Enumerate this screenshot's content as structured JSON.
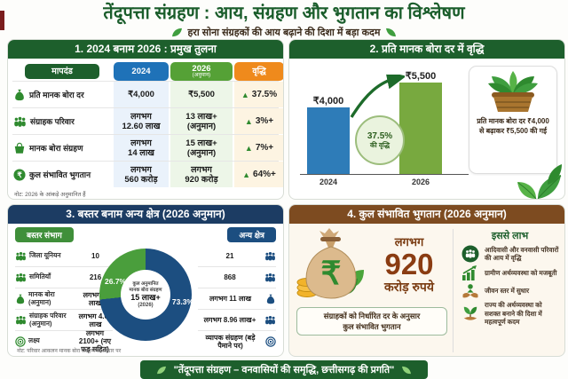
{
  "header": {
    "title": "तेंदूपत्ता संग्रहण : आय, संग्रहण और भुगतान का विश्लेषण",
    "subtitle": "हरा सोना संग्रहकों की आय बढ़ाने की दिशा में बड़ा कदम"
  },
  "panel1": {
    "title": "1. 2024 बनाम 2026 : प्रमुख तुलना",
    "col_param": "मापदंड",
    "col_2024": "2024",
    "col_2026": "2026",
    "col_2026_sub": "(अनुमान)",
    "col_growth": "वृद्धि",
    "rows": [
      {
        "icon": "money-bag",
        "label": "प्रति मानक बोरा दर",
        "y24a": "₹4,000",
        "y24b": "",
        "y26a": "₹5,500",
        "y26b": "",
        "growth": "37.5%"
      },
      {
        "icon": "families",
        "label": "संग्राहक परिवार",
        "y24a": "लगभग",
        "y24b": "12.60 लाख",
        "y26a": "13 लाख+",
        "y26b": "(अनुमान)",
        "growth": "3%+"
      },
      {
        "icon": "basket",
        "label": "मानक बोरा संग्रहण",
        "y24a": "लगभग",
        "y24b": "14 लाख",
        "y26a": "15 लाख+",
        "y26b": "(अनुमान)",
        "growth": "7%+"
      },
      {
        "icon": "rupee-circle",
        "label": "कुल संभावित भुगतान",
        "y24a": "लगभग",
        "y24b": "560 करोड़",
        "y26a": "लगभग",
        "y26b": "920 करोड़",
        "growth": "64%+"
      }
    ],
    "note": "नोट: 2026 के आंकड़े अनुमानित हैं"
  },
  "panel2": {
    "title": "2. प्रति मानक बोरा दर में वृद्धि",
    "bar1_value": "₹4,000",
    "bar1_year": "2024",
    "bar2_value": "₹5,500",
    "bar2_year": "2026",
    "badge_line1": "37.5%",
    "badge_line2": "की वृद्धि",
    "side_note": "प्रति मानक बोरा दर ₹4,000 से बढ़ाकर ₹5,500 की गई"
  },
  "panel3": {
    "title": "3. बस्तर बनाम अन्य क्षेत्र (2026 अनुमान)",
    "left_header": "बस्तर संभाग",
    "right_header": "अन्य क्षेत्र",
    "rows": [
      {
        "icon": "district-union",
        "label": "जिला यूनियन",
        "left": "10",
        "right": "21"
      },
      {
        "icon": "committees",
        "label": "समितियाँ",
        "left": "216",
        "right": "868"
      },
      {
        "icon": "money-bag",
        "label": "मानक बोरा (अनुमान)",
        "left": "लगभग 4 लाख",
        "right": "लगभग 11 लाख"
      },
      {
        "icon": "families",
        "label": "संग्राहक परिवार (अनुमान)",
        "left": "लगभग 4.04 लाख",
        "right": "लगभग 8.96 लाख+"
      },
      {
        "icon": "target",
        "label": "लक्ष्य",
        "left": "लगभग 2100+ (नए फड़ सहित)",
        "right": "व्यापक संग्रहण (बड़े पैमाने पर)"
      }
    ],
    "donut_label_green": "26.7%",
    "donut_label_blue": "73.3%",
    "donut_center_l1": "कुल अनुमानित",
    "donut_center_l2": "मानक बोरा संग्रहण",
    "donut_center_l3": "15 लाख+",
    "donut_center_l4": "(2026)",
    "note": "नोट: परिवार आकलन मानक बोरा संग्रहण के आधार पर"
  },
  "panel4": {
    "title": "4. कुल संभावित भुगतान (2026 अनुमान)",
    "approx": "लगभग",
    "amount": "920",
    "unit": "करोड़ रुपये",
    "box_line1": "संग्राहकों को निर्धारित दर के अनुसार",
    "box_line2": "कुल संभावित भुगतान",
    "benefits_title": "इससे लाभ",
    "benefits": [
      {
        "icon": "tribal-families",
        "text": "आदिवासी और वनवासी परिवारों की आय में वृद्धि"
      },
      {
        "icon": "rural-economy-growth",
        "text": "ग्रामीण अर्थव्यवस्था को मजबूती"
      },
      {
        "icon": "living-standard",
        "text": "जीवन स्तर में सुधार"
      },
      {
        "icon": "state-economy",
        "text": "राज्य की अर्थव्यवस्था को सशक्त बनाने की दिशा में महत्वपूर्ण कदम"
      }
    ]
  },
  "footer": {
    "text": "\"तेंदूपत्ता संग्रहण – वनवासियों की समृद्धि, छत्तीसगढ़ की प्रगति\""
  },
  "chart_data": [
    {
      "type": "bar",
      "title": "प्रति मानक बोरा दर में वृद्धि",
      "categories": [
        "2024",
        "2026"
      ],
      "values": [
        4000,
        5500
      ],
      "value_labels": [
        "₹4,000",
        "₹5,500"
      ],
      "annotation": "37.5% की वृद्धि",
      "xlabel": "",
      "ylabel": "",
      "ylim": [
        0,
        6000
      ],
      "grid": false,
      "legend": "none",
      "colors": [
        "#2e7cb8",
        "#78a93f"
      ]
    },
    {
      "type": "pie",
      "donut": true,
      "title": "कुल अनुमानित मानक बोरा संग्रहण 15 लाख+ (2026)",
      "categories": [
        "बस्तर संभाग",
        "अन्य क्षेत्र"
      ],
      "values": [
        26.7,
        73.3
      ],
      "unit": "%",
      "colors": [
        "#4a9e3c",
        "#1c4e80"
      ]
    }
  ]
}
